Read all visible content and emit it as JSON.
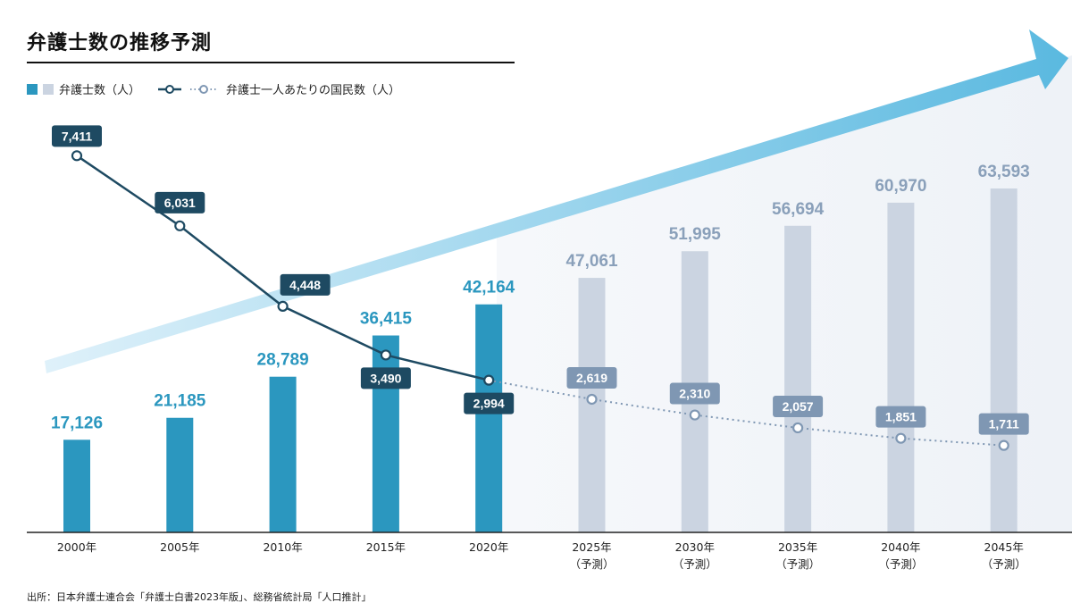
{
  "title": "弁護士数の推移予測",
  "legend": {
    "bars": "弁護士数（人）",
    "line": "弁護士一人あたりの国民数（人）"
  },
  "source": "出所：日本弁護士連合会「弁護士白書2023年版」、総務省統計局「人口推計」",
  "colors": {
    "actual_bar": "#2b97bf",
    "forecast_bar": "#cbd4e1",
    "actual_line": "#1e4a62",
    "forecast_line": "#7f97b3",
    "actual_bar_label": "#2b97bf",
    "forecast_bar_label": "#8aa0ba",
    "arrow": "#5ab9e0"
  },
  "chart_data": {
    "type": "bar+line",
    "categories": [
      "2000年",
      "2005年",
      "2010年",
      "2015年",
      "2020年",
      "2025年",
      "2030年",
      "2035年",
      "2040年",
      "2045年"
    ],
    "category_sublabels": [
      "",
      "",
      "",
      "",
      "",
      "（予測）",
      "（予測）",
      "（予測）",
      "（予測）",
      "（予測）"
    ],
    "forecast_from_index": 5,
    "series": [
      {
        "name": "弁護士数（人）",
        "type": "bar",
        "values": [
          17126,
          21185,
          28789,
          36415,
          42164,
          47061,
          51995,
          56694,
          60970,
          63593
        ],
        "labels": [
          "17,126",
          "21,185",
          "28,789",
          "36,415",
          "42,164",
          "47,061",
          "51,995",
          "56,694",
          "60,970",
          "63,593"
        ]
      },
      {
        "name": "弁護士一人あたりの国民数（人）",
        "type": "line",
        "values": [
          7411,
          6031,
          4448,
          3490,
          2994,
          2619,
          2310,
          2057,
          1851,
          1711
        ],
        "labels": [
          "7,411",
          "6,031",
          "4,448",
          "3,490",
          "2,994",
          "2,619",
          "2,310",
          "2,057",
          "1,851",
          "1,711"
        ]
      }
    ],
    "grid": false
  }
}
